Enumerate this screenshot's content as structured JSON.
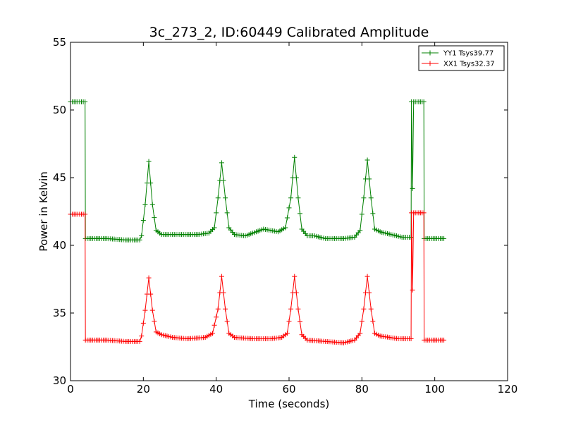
{
  "chart_data": {
    "type": "line",
    "title": "3c_273_2, ID:60449 Calibrated Amplitude",
    "xlabel": "Time (seconds)",
    "ylabel": "Power in Kelvin",
    "xlim": [
      0,
      120
    ],
    "ylim": [
      30,
      55
    ],
    "xticks": [
      0,
      20,
      40,
      60,
      80,
      100,
      120
    ],
    "yticks": [
      30,
      35,
      40,
      45,
      50,
      55
    ],
    "grid": false,
    "legend_position": "top-right",
    "marker": "+",
    "series": [
      {
        "name": "YY1 Tsys39.77",
        "color": "#008000",
        "anchors": [
          [
            0,
            50.6
          ],
          [
            4.0,
            50.6
          ],
          [
            4.1,
            40.5
          ],
          [
            10,
            40.5
          ],
          [
            15,
            40.4
          ],
          [
            19,
            40.4
          ],
          [
            19.5,
            40.7
          ],
          [
            20.5,
            43.0
          ],
          [
            21.5,
            46.2
          ],
          [
            22.5,
            43.0
          ],
          [
            23.5,
            41.1
          ],
          [
            25,
            40.8
          ],
          [
            30,
            40.8
          ],
          [
            35,
            40.8
          ],
          [
            38,
            40.9
          ],
          [
            39.5,
            41.3
          ],
          [
            40.5,
            43.5
          ],
          [
            41.5,
            46.1
          ],
          [
            42.5,
            43.5
          ],
          [
            43.5,
            41.3
          ],
          [
            45,
            40.8
          ],
          [
            48,
            40.7
          ],
          [
            51,
            41.0
          ],
          [
            53,
            41.2
          ],
          [
            55,
            41.1
          ],
          [
            57,
            41.0
          ],
          [
            59,
            41.3
          ],
          [
            60.5,
            43.5
          ],
          [
            61.5,
            46.5
          ],
          [
            62.5,
            43.5
          ],
          [
            63.5,
            41.2
          ],
          [
            65,
            40.7
          ],
          [
            67,
            40.7
          ],
          [
            70,
            40.5
          ],
          [
            75,
            40.5
          ],
          [
            78,
            40.6
          ],
          [
            79.5,
            41.1
          ],
          [
            80.5,
            43.5
          ],
          [
            81.5,
            46.3
          ],
          [
            82.5,
            43.5
          ],
          [
            83.5,
            41.2
          ],
          [
            85,
            41.0
          ],
          [
            88,
            40.8
          ],
          [
            91,
            40.6
          ],
          [
            93.5,
            40.6
          ],
          [
            93.6,
            50.6
          ],
          [
            93.9,
            44.2
          ],
          [
            94.2,
            50.6
          ],
          [
            97.0,
            50.6
          ],
          [
            97.1,
            40.5
          ],
          [
            102.5,
            40.5
          ]
        ]
      },
      {
        "name": "XX1 Tsys32.37",
        "color": "#ff0000",
        "anchors": [
          [
            0,
            42.3
          ],
          [
            4.0,
            42.3
          ],
          [
            4.1,
            33.0
          ],
          [
            10,
            33.0
          ],
          [
            15,
            32.9
          ],
          [
            19,
            32.9
          ],
          [
            19.5,
            33.3
          ],
          [
            20.5,
            35.2
          ],
          [
            21.5,
            37.6
          ],
          [
            22.5,
            35.2
          ],
          [
            23.5,
            33.6
          ],
          [
            25,
            33.4
          ],
          [
            28,
            33.2
          ],
          [
            32,
            33.1
          ],
          [
            37,
            33.2
          ],
          [
            39,
            33.5
          ],
          [
            40.5,
            35.3
          ],
          [
            41.5,
            37.7
          ],
          [
            42.5,
            35.3
          ],
          [
            43.5,
            33.5
          ],
          [
            45,
            33.2
          ],
          [
            50,
            33.1
          ],
          [
            55,
            33.1
          ],
          [
            58,
            33.2
          ],
          [
            59.5,
            33.5
          ],
          [
            60.5,
            35.3
          ],
          [
            61.5,
            37.7
          ],
          [
            62.5,
            35.3
          ],
          [
            63.5,
            33.4
          ],
          [
            65,
            33.0
          ],
          [
            70,
            32.9
          ],
          [
            75,
            32.8
          ],
          [
            78,
            33.0
          ],
          [
            79.5,
            33.5
          ],
          [
            80.5,
            35.3
          ],
          [
            81.5,
            37.7
          ],
          [
            82.5,
            35.3
          ],
          [
            83.5,
            33.5
          ],
          [
            85,
            33.3
          ],
          [
            90,
            33.1
          ],
          [
            93.5,
            33.1
          ],
          [
            93.6,
            42.4
          ],
          [
            93.9,
            36.7
          ],
          [
            94.2,
            42.4
          ],
          [
            97.0,
            42.4
          ],
          [
            97.1,
            33.0
          ],
          [
            102.5,
            33.0
          ]
        ]
      }
    ]
  }
}
